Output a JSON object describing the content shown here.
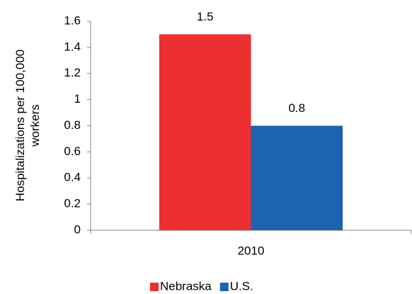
{
  "chart_data": {
    "type": "bar",
    "y_label": "Hospitalizations per 100,000 workers",
    "categories": [
      "2010"
    ],
    "series": [
      {
        "name": "Nebraska",
        "color": "#ec3031",
        "values": [
          1.5
        ]
      },
      {
        "name": "U.S.",
        "color": "#1d63ad",
        "values": [
          0.8
        ]
      }
    ],
    "ylim": [
      0,
      1.6
    ],
    "yticks": [
      0,
      0.2,
      0.4,
      0.6,
      0.8,
      1,
      1.2,
      1.4,
      1.6
    ],
    "grid": false,
    "legend": "bottom"
  }
}
